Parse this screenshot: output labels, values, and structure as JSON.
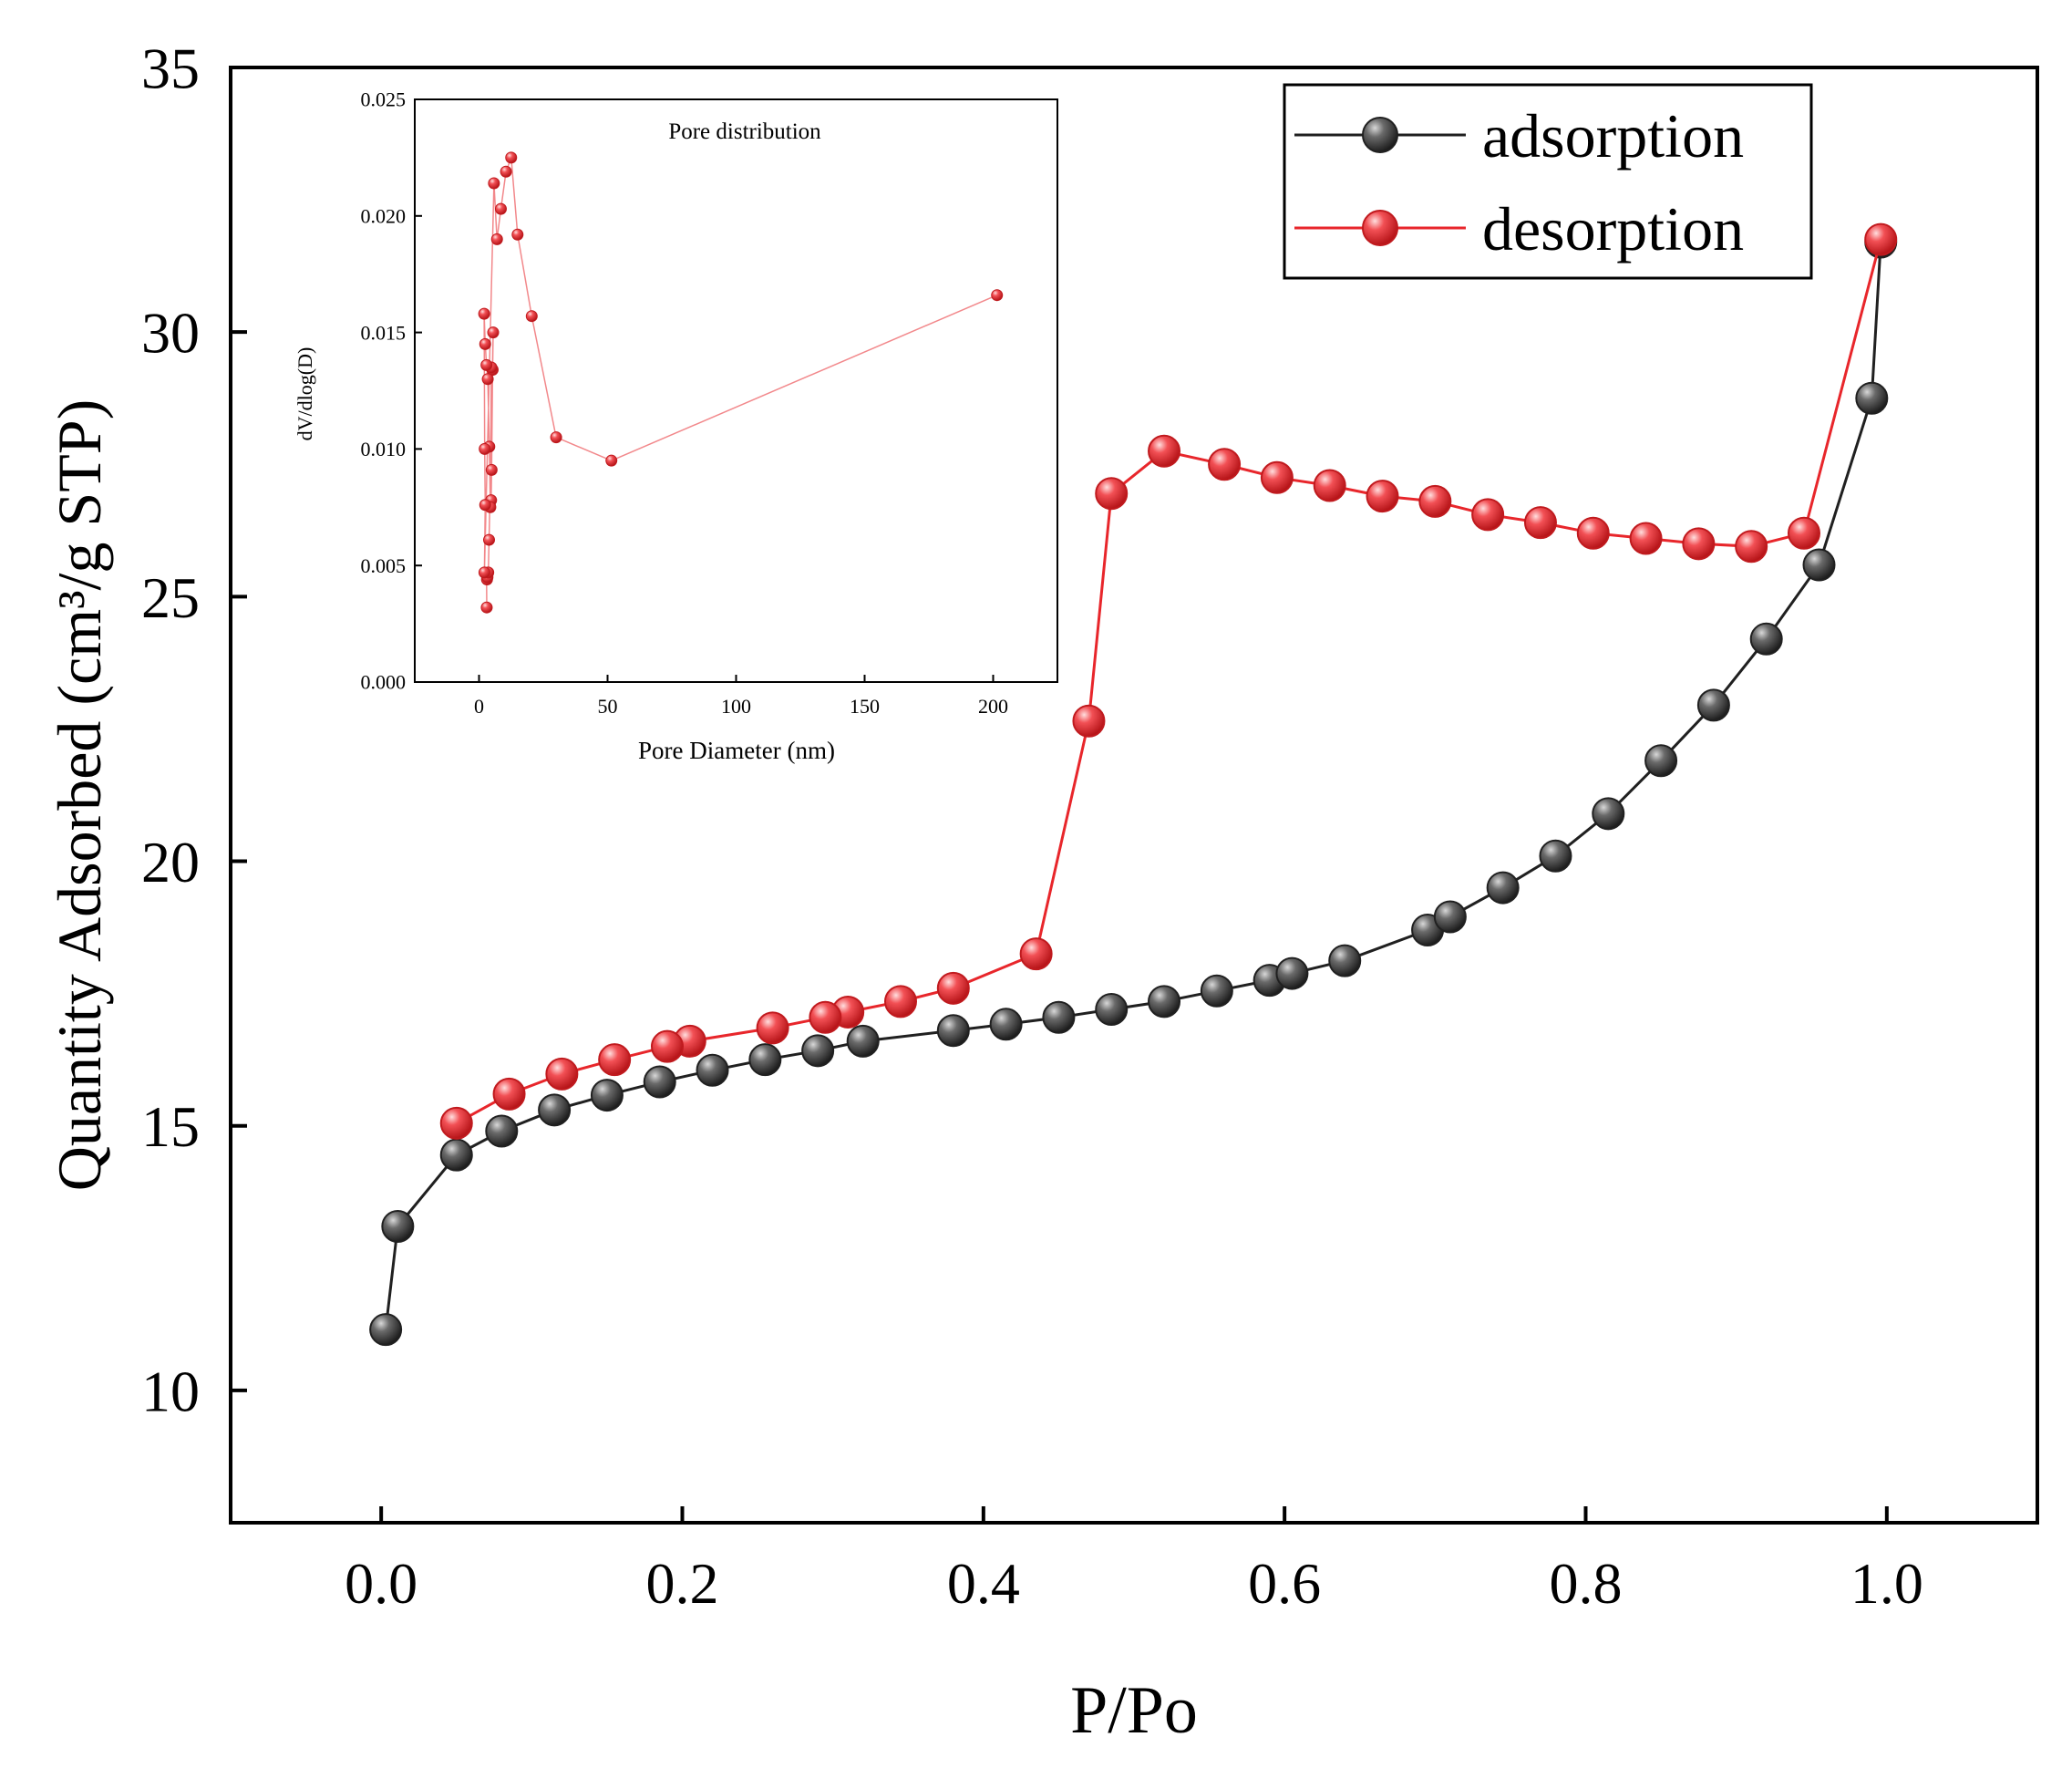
{
  "chart_data": [
    {
      "type": "scatter",
      "title": "",
      "xlabel": "P/Po",
      "ylabel": "Quantity Adsorbed (cm³/g STP)",
      "xlim": [
        -0.1,
        1.1
      ],
      "ylim": [
        7.5,
        35
      ],
      "xticks": [
        "0.0",
        "0.2",
        "0.4",
        "0.6",
        "0.8",
        "1.0"
      ],
      "yticks": [
        "10",
        "15",
        "20",
        "25",
        "30",
        "35"
      ],
      "xtick_values": [
        0,
        0.2,
        0.4,
        0.6,
        0.8,
        1.0
      ],
      "ytick_values": [
        10,
        15,
        20,
        25,
        30,
        35
      ],
      "grid": false,
      "legend": "top-right",
      "series": [
        {
          "name": "adsorption",
          "color": "#202020",
          "x": [
            0.003,
            0.011,
            0.05,
            0.08,
            0.115,
            0.15,
            0.185,
            0.22,
            0.255,
            0.29,
            0.32,
            0.38,
            0.415,
            0.45,
            0.485,
            0.52,
            0.555,
            0.59,
            0.605,
            0.64,
            0.695,
            0.71,
            0.745,
            0.78,
            0.815,
            0.85,
            0.885,
            0.92,
            0.955,
            0.99,
            0.996
          ],
          "y": [
            11.15,
            13.1,
            14.45,
            14.9,
            15.3,
            15.58,
            15.83,
            16.05,
            16.25,
            16.42,
            16.6,
            16.8,
            16.92,
            17.05,
            17.2,
            17.35,
            17.55,
            17.75,
            17.88,
            18.12,
            18.7,
            18.95,
            19.5,
            20.1,
            20.9,
            21.9,
            22.95,
            24.2,
            25.6,
            28.75,
            31.7
          ]
        },
        {
          "name": "desorption",
          "color": "#e8262b",
          "x": [
            0.996,
            0.945,
            0.91,
            0.875,
            0.84,
            0.805,
            0.77,
            0.735,
            0.7,
            0.665,
            0.63,
            0.595,
            0.56,
            0.52,
            0.485,
            0.47,
            0.435,
            0.38,
            0.345,
            0.31,
            0.295,
            0.26,
            0.205,
            0.19,
            0.155,
            0.12,
            0.085,
            0.05
          ],
          "y": [
            31.75,
            26.2,
            25.95,
            26.0,
            26.1,
            26.2,
            26.4,
            26.55,
            26.8,
            26.9,
            27.1,
            27.25,
            27.5,
            27.75,
            26.95,
            22.65,
            18.25,
            17.6,
            17.35,
            17.15,
            17.05,
            16.85,
            16.6,
            16.5,
            16.25,
            15.98,
            15.6,
            15.05
          ]
        }
      ]
    },
    {
      "type": "scatter",
      "title": "Pore distribution",
      "xlabel": "Pore Diameter (nm)",
      "ylabel": "dV/dlog(D)",
      "xlim": [
        -25,
        225
      ],
      "ylim": [
        0,
        0.025
      ],
      "xticks": [
        "0",
        "50",
        "100",
        "150",
        "200"
      ],
      "yticks": [
        "0.000",
        "0.005",
        "0.010",
        "0.015",
        "0.020",
        "0.025"
      ],
      "xtick_values": [
        0,
        50,
        100,
        150,
        200
      ],
      "ytick_values": [
        0,
        0.005,
        0.01,
        0.015,
        0.02,
        0.025
      ],
      "grid": false,
      "legend": "none",
      "series": [
        {
          "color": "#e8262b",
          "x": [
            3.0,
            2.9,
            3.1,
            3.3,
            3.6,
            3.9,
            4.2,
            4.7,
            4.9,
            5.3,
            5.5,
            5.2,
            4.8,
            4.4,
            4.0,
            3.4,
            2.9,
            2.4,
            2.0,
            2.2,
            2.4,
            2.1,
            5.8,
            7.0,
            8.5,
            10.5,
            12.5,
            15.0,
            20.5,
            30.0,
            51.5,
            201.5
          ],
          "y": [
            0.0032,
            0.0046,
            0.0044,
            0.0045,
            0.0047,
            0.0061,
            0.0076,
            0.0078,
            0.0091,
            0.0134,
            0.015,
            0.0134,
            0.0135,
            0.0075,
            0.0101,
            0.013,
            0.0136,
            0.0145,
            0.0158,
            0.01,
            0.0076,
            0.0047,
            0.0214,
            0.019,
            0.0203,
            0.0219,
            0.0225,
            0.0192,
            0.0157,
            0.0105,
            0.0095,
            0.0166
          ]
        }
      ]
    }
  ]
}
